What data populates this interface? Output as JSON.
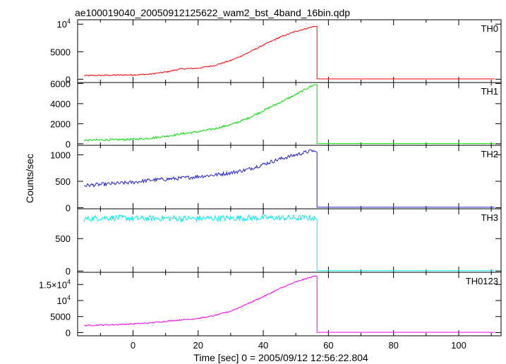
{
  "chart_data": {
    "type": "line",
    "title": "ae100019040_20050912125622_wam2_bst_4band_16bin.qdp",
    "xlabel": "Time [sec] 0 = 2005/09/12 12:56:22.804",
    "ylabel": "Counts/sec",
    "xlim": [
      -17,
      113
    ],
    "x_ticks": [
      0,
      20,
      40,
      60,
      80,
      100
    ],
    "x_tick_labels": [
      "0",
      "20",
      "40",
      "60",
      "80",
      "100"
    ],
    "panels": [
      {
        "name": "TH0",
        "color": "#ff0000",
        "ylim": [
          -600,
          10800
        ],
        "y_ticks": [
          0,
          5000,
          10000
        ],
        "y_tick_labels": [
          "0",
          "5000",
          "10⁴"
        ],
        "y_tick_label_parts": [
          {
            "base": "0"
          },
          {
            "base": "5000"
          },
          {
            "base": "10",
            "exp": "4"
          }
        ],
        "curve_x": [
          -15,
          -10,
          -5,
          0,
          5,
          10,
          15,
          20,
          25,
          30,
          35,
          40,
          45,
          50,
          55,
          56
        ],
        "curve_y": [
          650,
          700,
          750,
          800,
          900,
          1300,
          1900,
          2000,
          2500,
          3400,
          4700,
          6200,
          7600,
          8700,
          9500,
          9600
        ],
        "noise": 120,
        "post_level": 50
      },
      {
        "name": "TH1",
        "color": "#00dd00",
        "ylim": [
          -150,
          6100
        ],
        "y_ticks": [
          0,
          2000,
          4000,
          6000
        ],
        "y_tick_labels": [
          "0",
          "2000",
          "4000",
          "6000"
        ],
        "y_tick_label_parts": [
          {
            "base": "0"
          },
          {
            "base": "2000"
          },
          {
            "base": "4000"
          },
          {
            "base": "6000"
          }
        ],
        "curve_x": [
          -15,
          -10,
          -5,
          0,
          5,
          10,
          15,
          20,
          25,
          30,
          35,
          40,
          45,
          50,
          55,
          56
        ],
        "curve_y": [
          350,
          380,
          400,
          450,
          550,
          750,
          1000,
          1200,
          1500,
          1900,
          2500,
          3300,
          4100,
          4900,
          5800,
          5900
        ],
        "noise": 100,
        "post_level": 20
      },
      {
        "name": "TH2",
        "color": "#2222cc",
        "ylim": [
          -20,
          1180
        ],
        "y_ticks": [
          0,
          500,
          1000
        ],
        "y_tick_labels": [
          "0",
          "500",
          "1000"
        ],
        "y_tick_label_parts": [
          {
            "base": "0"
          },
          {
            "base": "500"
          },
          {
            "base": "1000"
          }
        ],
        "curve_x": [
          -15,
          -10,
          -5,
          0,
          5,
          10,
          15,
          20,
          25,
          30,
          35,
          40,
          45,
          50,
          55,
          56
        ],
        "curve_y": [
          420,
          440,
          460,
          480,
          520,
          540,
          560,
          590,
          620,
          660,
          720,
          820,
          920,
          1000,
          1080,
          1050
        ],
        "noise": 35,
        "post_level": 10
      },
      {
        "name": "TH3",
        "color": "#00eeee",
        "ylim": [
          -20,
          960
        ],
        "y_ticks": [
          0,
          500
        ],
        "y_tick_labels": [
          "0",
          "500"
        ],
        "y_tick_label_parts": [
          {
            "base": "0"
          },
          {
            "base": "500"
          }
        ],
        "curve_x": [
          -15,
          -10,
          -5,
          0,
          5,
          10,
          15,
          20,
          25,
          30,
          35,
          40,
          45,
          50,
          55,
          56
        ],
        "curve_y": [
          800,
          820,
          820,
          810,
          810,
          815,
          810,
          810,
          815,
          815,
          820,
          820,
          820,
          820,
          820,
          800
        ],
        "noise": 45,
        "post_level": 5
      },
      {
        "name": "TH0123",
        "color": "#ee00ee",
        "ylim": [
          -1000,
          18800
        ],
        "y_ticks": [
          0,
          5000,
          10000,
          15000
        ],
        "y_tick_labels": [
          "0",
          "5000",
          "10⁴",
          "1.5×10⁴"
        ],
        "y_tick_label_parts": [
          {
            "base": "0"
          },
          {
            "base": "5000"
          },
          {
            "base": "10",
            "exp": "4"
          },
          {
            "base": "1.5×10",
            "exp": "4"
          }
        ],
        "curve_x": [
          -15,
          -10,
          -5,
          0,
          5,
          10,
          15,
          20,
          25,
          30,
          35,
          40,
          45,
          50,
          55,
          56
        ],
        "curve_y": [
          2200,
          2350,
          2500,
          2700,
          3000,
          3500,
          4000,
          4400,
          5300,
          6700,
          8900,
          11200,
          13700,
          15800,
          17400,
          17600
        ],
        "noise": 180,
        "post_level": 80
      }
    ],
    "drop_time": 56.5,
    "end_time": 111
  }
}
